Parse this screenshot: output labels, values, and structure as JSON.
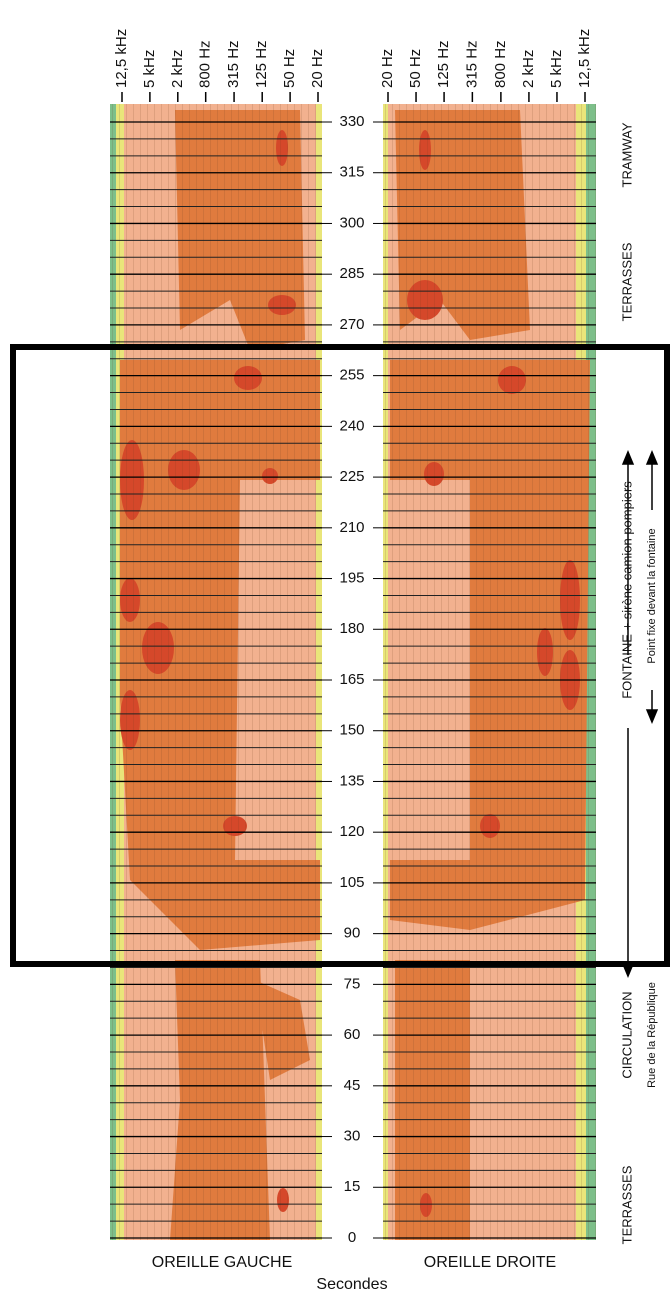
{
  "chart_data": {
    "type": "spectrogram",
    "ylabel": "Secondes",
    "ylim": [
      0,
      330
    ],
    "yticks": [
      0,
      15,
      30,
      45,
      60,
      75,
      90,
      105,
      120,
      135,
      150,
      165,
      180,
      195,
      210,
      225,
      240,
      255,
      270,
      285,
      300,
      315,
      330
    ],
    "xscale": "log",
    "panels": [
      {
        "title": "OREILLE GAUCHE",
        "xlim": [
          12500,
          20
        ],
        "xticks": [
          {
            "value": 12500,
            "label": "12,5 kHz"
          },
          {
            "value": 5000,
            "label": "5 kHz"
          },
          {
            "value": 2000,
            "label": "2 kHz"
          },
          {
            "value": 800,
            "label": "800 Hz"
          },
          {
            "value": 315,
            "label": "315 Hz"
          },
          {
            "value": 125,
            "label": "125 Hz"
          },
          {
            "value": 50,
            "label": "50 Hz"
          },
          {
            "value": 20,
            "label": "20 Hz"
          }
        ]
      },
      {
        "title": "OREILLE DROITE",
        "xlim": [
          20,
          12500
        ],
        "xticks": [
          {
            "value": 20,
            "label": "20 Hz"
          },
          {
            "value": 50,
            "label": "50 Hz"
          },
          {
            "value": 125,
            "label": "125 Hz"
          },
          {
            "value": 315,
            "label": "315 Hz"
          },
          {
            "value": 800,
            "label": "800 Hz"
          },
          {
            "value": 2000,
            "label": "2 kHz"
          },
          {
            "value": 5000,
            "label": "5 kHz"
          },
          {
            "value": 12500,
            "label": "12,5 kHz"
          }
        ]
      }
    ],
    "annotations": [
      "TRAMWAY",
      "TERRASSES",
      "FONTAINE  + sirène camion pompiers",
      "Point fixe devant la fontaine",
      "CIRCULATION",
      "Rue de la République",
      "TERRASSES"
    ]
  }
}
